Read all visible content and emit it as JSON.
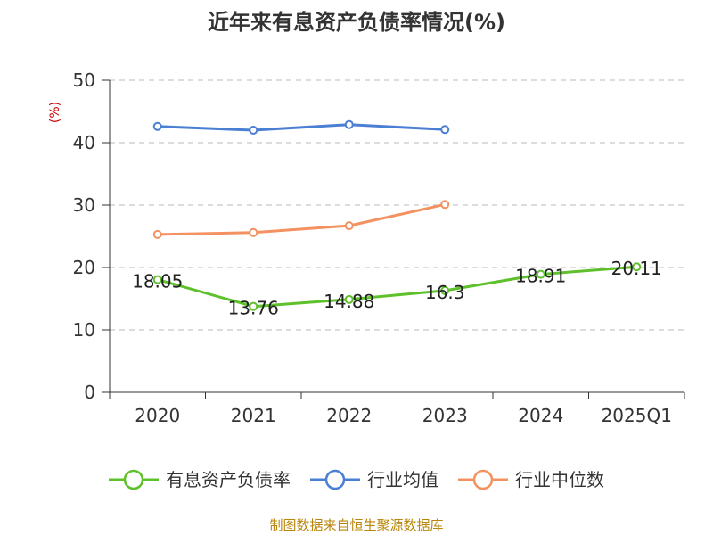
{
  "chart_data": {
    "type": "line",
    "title": "近年来有息资产负债率情况(%)",
    "ylabel": "(%)",
    "ylim": [
      0,
      50
    ],
    "yticks": [
      0,
      10,
      20,
      30,
      40,
      50
    ],
    "categories": [
      "2020",
      "2021",
      "2022",
      "2023",
      "2024",
      "2025Q1"
    ],
    "grid": true,
    "legend_position": "bottom",
    "series": [
      {
        "name": "有息资产负债率",
        "color": "#5ec02b",
        "values": [
          18.05,
          13.76,
          14.88,
          16.3,
          18.91,
          20.11
        ],
        "labels": [
          "18.05",
          "13.76",
          "14.88",
          "16.3",
          "18.91",
          "20.11"
        ]
      },
      {
        "name": "行业均值",
        "color": "#4a7fd4",
        "values": [
          42.6,
          42.0,
          42.9,
          42.1,
          null,
          null
        ]
      },
      {
        "name": "行业中位数",
        "color": "#f39260",
        "values": [
          25.3,
          25.6,
          26.7,
          30.1,
          null,
          null
        ]
      }
    ]
  },
  "source": "制图数据来自恒生聚源数据库"
}
